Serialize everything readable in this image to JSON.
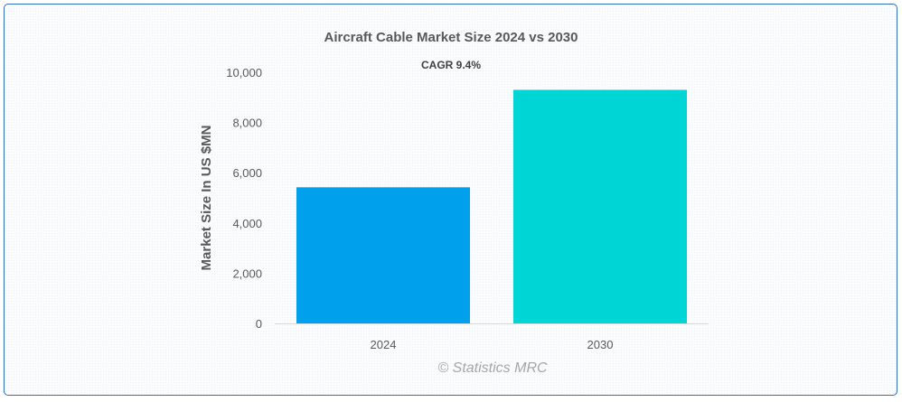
{
  "chart_data": {
    "type": "bar",
    "title": "Aircraft Cable Market Size 2024 vs 2030",
    "subtitle": "CAGR 9.4%",
    "xlabel": "",
    "ylabel": "Market Size In US $MN",
    "categories": [
      "2024",
      "2030"
    ],
    "values": [
      5420,
      9300
    ],
    "bar_colors": [
      "#00a0ec",
      "#00d5d5"
    ],
    "ylim": [
      0,
      10000
    ],
    "yticks": [
      0,
      2000,
      4000,
      6000,
      8000,
      10000
    ],
    "ytick_labels": [
      "0",
      "2,000",
      "4,000",
      "6,000",
      "8,000",
      "10,000"
    ],
    "grid": false,
    "watermark": "© Statistics MRC"
  },
  "colors": {
    "frame_border": "#2e6fb8",
    "axis": "#d9d9d9",
    "text": "#595959"
  }
}
